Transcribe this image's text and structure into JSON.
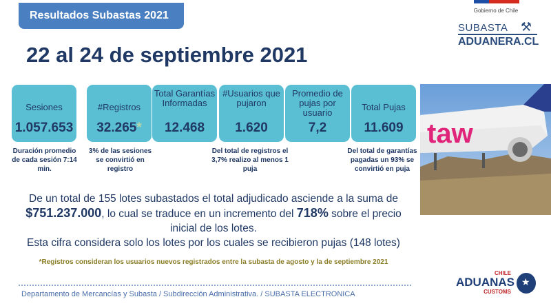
{
  "header": {
    "tab_title": "Resultados Subastas 2021",
    "date_title": "22 al 24 de septiembre 2021"
  },
  "gov_logo": {
    "text": "Gobierno de Chile",
    "colors": [
      "#1e4ea5",
      "#d52b1e"
    ]
  },
  "subasta_logo": {
    "line1": "SUBASTA",
    "line2": "ADUANERA.CL",
    "icon": "gavel-icon"
  },
  "stats": [
    {
      "label": "Sesiones",
      "value": "1.057.653"
    },
    {
      "label": "#Registros",
      "value": "32.265",
      "marker": "*"
    },
    {
      "label": "Total Garantías Informadas",
      "value": "12.468"
    },
    {
      "label": "#Usuarios que pujaron",
      "value": "1.620"
    },
    {
      "label": "Promedio de pujas por usuario",
      "value": "7,2"
    },
    {
      "label": "Total Pujas",
      "value": "11.609"
    }
  ],
  "notes": {
    "sesiones": "Duración promedio de cada sesión 7:14 min.",
    "registros": "3% de las sesiones se convirtió en registro",
    "usuarios": "Del total de registros el 3,7% realizo al menos 1 puja",
    "pujas": "Del total de garantías pagadas un 93% se convirtió en puja"
  },
  "summary": {
    "line1": "De un total de 155 lotes subastados el total adjudicado asciende a la suma de",
    "amount": "$751.237.000",
    "line2a": ", lo cual se traduce en un incremento del ",
    "percent": "718%",
    "line2b": " sobre el precio",
    "line3": "inicial de los lotes.",
    "line4": "Esta cifra considera solo los lotes por los cuales se recibieron pujas (148 lotes)"
  },
  "footnote": "*Registros consideran los usuarios nuevos registrados entre la subasta de agosto y la de septiembre 2021",
  "footer": {
    "text": "Departamento de Mercancías y Subasta / Subdirección Administrativa. / SUBASTA ELECTRONICA"
  },
  "aduanas_logo": {
    "top": "CHILE",
    "name": "ADUANAS",
    "bottom": "CUSTOMS",
    "icon": "star-badge-icon"
  },
  "colors": {
    "box": "#5bbfd3",
    "header": "#4a7fc1",
    "title": "#1f3864",
    "footnote": "#8a7c25"
  }
}
